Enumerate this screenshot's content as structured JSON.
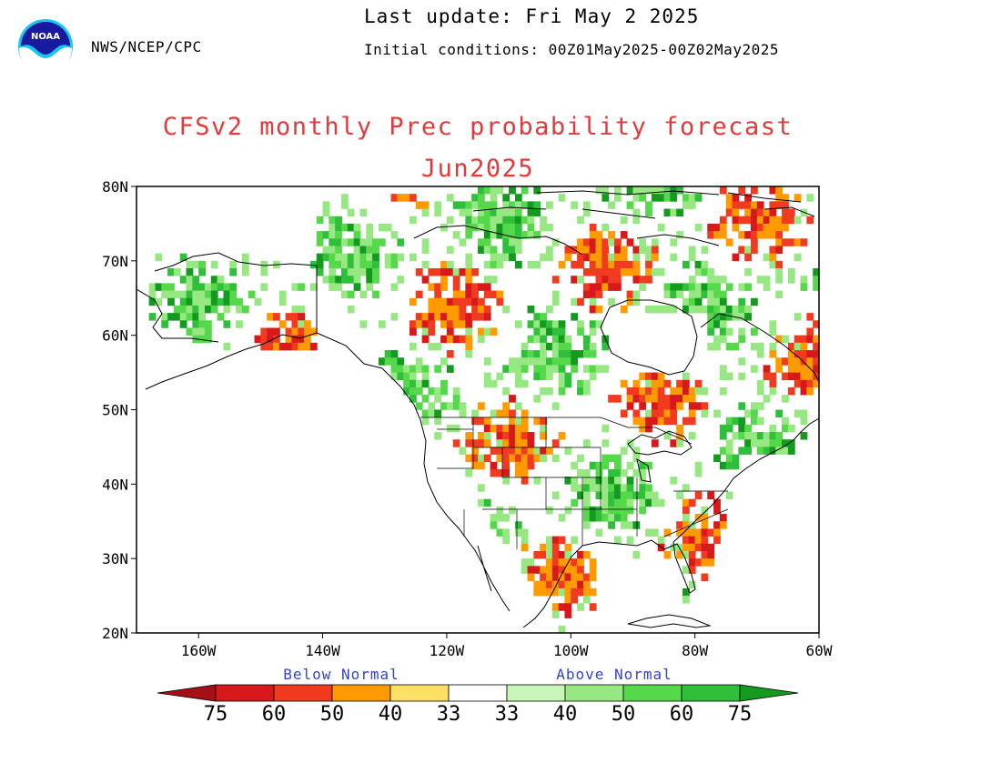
{
  "header": {
    "agency": "NWS/NCEP/CPC",
    "last_update": "Last update: Fri May 2 2025",
    "initial_conditions": "Initial conditions: 00Z01May2025-00Z02May2025",
    "logo_text": "NOAA"
  },
  "map": {
    "title_line1": "CFSv2 monthly Prec probability forecast",
    "title_line2": "Jun2025",
    "lat_labels": [
      "80N",
      "70N",
      "60N",
      "50N",
      "40N",
      "30N",
      "20N"
    ],
    "lon_labels": [
      "160W",
      "140W",
      "120W",
      "100W",
      "80W",
      "60W"
    ],
    "lat_range": [
      20,
      80
    ],
    "lon_range": [
      -170,
      -60
    ]
  },
  "legend": {
    "below_label": "Below Normal",
    "above_label": "Above Normal",
    "tick_labels": [
      "75",
      "60",
      "50",
      "40",
      "33",
      "33",
      "40",
      "50",
      "60",
      "75"
    ],
    "colors": {
      "below_75": "#a50f15",
      "below_60": "#d7191c",
      "below_50": "#f03b20",
      "below_40": "#ff9a00",
      "below_33": "#ffe066",
      "above_33": "#c8f5b8",
      "above_40": "#97e882",
      "above_50": "#55d94b",
      "above_60": "#2fbf3a",
      "above_75": "#139a1f"
    }
  }
}
